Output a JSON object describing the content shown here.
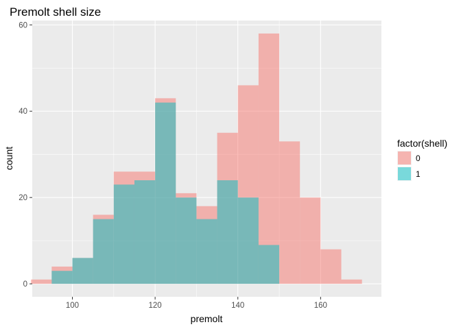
{
  "chart_data": {
    "type": "bar",
    "title": "Premolt shell size",
    "xlabel": "premolt",
    "ylabel": "count",
    "xlim": [
      90.3,
      174.7
    ],
    "ylim": [
      -3,
      61
    ],
    "x_ticks": [
      100,
      120,
      140,
      160
    ],
    "y_ticks": [
      0,
      20,
      40,
      60
    ],
    "x_tick_labels": [
      "100",
      "120",
      "140",
      "160"
    ],
    "y_tick_labels": [
      "0",
      "20",
      "40",
      "60"
    ],
    "bin_width": 5,
    "grid": true,
    "legend": {
      "title": "factor(shell)",
      "position": "right",
      "entries": [
        "0",
        "1"
      ]
    },
    "series": [
      {
        "name": "0",
        "color": "#F8766D",
        "bins": [
          [
            92.5,
            1
          ],
          [
            97.5,
            4
          ],
          [
            102.5,
            6
          ],
          [
            107.5,
            16
          ],
          [
            112.5,
            26
          ],
          [
            117.5,
            26
          ],
          [
            122.5,
            43
          ],
          [
            127.5,
            21
          ],
          [
            132.5,
            18
          ],
          [
            137.5,
            35
          ],
          [
            142.5,
            46
          ],
          [
            147.5,
            58
          ],
          [
            152.5,
            33
          ],
          [
            157.5,
            20
          ],
          [
            162.5,
            8
          ],
          [
            167.5,
            1
          ]
        ]
      },
      {
        "name": "1",
        "color": "#00BFC4",
        "bins": [
          [
            97.5,
            3
          ],
          [
            102.5,
            6
          ],
          [
            107.5,
            15
          ],
          [
            112.5,
            23
          ],
          [
            117.5,
            24
          ],
          [
            122.5,
            42
          ],
          [
            127.5,
            20
          ],
          [
            132.5,
            15
          ],
          [
            137.5,
            24
          ],
          [
            142.5,
            20
          ],
          [
            147.5,
            9
          ]
        ]
      }
    ]
  }
}
